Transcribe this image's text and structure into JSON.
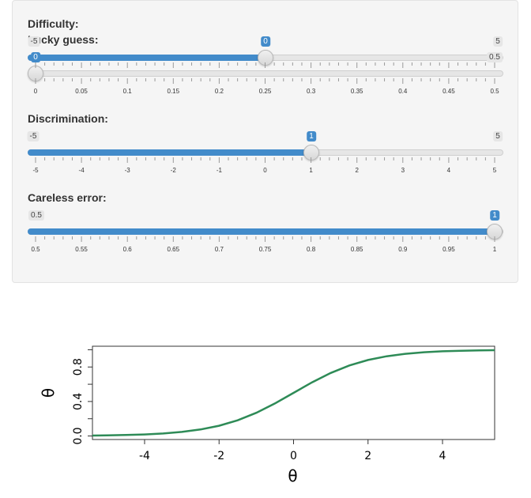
{
  "sliders": {
    "difficulty": {
      "label": "Difficulty:",
      "min_label": "-5",
      "max_label": "5",
      "value_label": "0",
      "min": -5,
      "max": 5,
      "value": 0
    },
    "lucky": {
      "label": "Lucky guess:",
      "min_label": "0",
      "max_label": "0.5",
      "value_label": "0",
      "min": 0,
      "max": 0.5,
      "value": 0,
      "tick_labels": [
        "0",
        "0.05",
        "0.1",
        "0.15",
        "0.2",
        "0.25",
        "0.3",
        "0.35",
        "0.4",
        "0.45",
        "0.5"
      ]
    },
    "discrimination": {
      "label": "Discrimination:",
      "min_label": "-5",
      "max_label": "5",
      "value_label": "1",
      "min": -5,
      "max": 5,
      "value": 1,
      "tick_labels": [
        "-5",
        "-4",
        "-3",
        "-2",
        "-1",
        "0",
        "1",
        "2",
        "3",
        "4",
        "5"
      ]
    },
    "careless": {
      "label": "Careless error:",
      "min_label": "0.5",
      "value_label": "1",
      "min": 0.5,
      "max": 1,
      "value": 1,
      "tick_labels": [
        "0.5",
        "0.55",
        "0.6",
        "0.65",
        "0.7",
        "0.75",
        "0.8",
        "0.85",
        "0.9",
        "0.95",
        "1"
      ]
    }
  },
  "colors": {
    "accent": "#428bca",
    "curve": "#2e8b57"
  },
  "chart_data": {
    "type": "line",
    "title": "",
    "xlabel": "θ",
    "ylabel": "θ",
    "xlim": [
      -5.4,
      5.4
    ],
    "ylim": [
      0,
      1
    ],
    "xticks": [
      "-4",
      "-2",
      "0",
      "2",
      "4"
    ],
    "yticks": [
      "0.0",
      "0.4",
      "0.8"
    ],
    "series": [
      {
        "x": [
          -5.4,
          -5,
          -4.5,
          -4,
          -3.5,
          -3,
          -2.5,
          -2,
          -1.5,
          -1,
          -0.5,
          0,
          0.5,
          1,
          1.5,
          2,
          2.5,
          3,
          3.5,
          4,
          4.5,
          5,
          5.4
        ],
        "y": [
          0.005,
          0.007,
          0.011,
          0.018,
          0.029,
          0.047,
          0.076,
          0.119,
          0.182,
          0.269,
          0.377,
          0.5,
          0.623,
          0.731,
          0.818,
          0.881,
          0.924,
          0.953,
          0.971,
          0.982,
          0.989,
          0.993,
          0.995
        ]
      }
    ]
  }
}
